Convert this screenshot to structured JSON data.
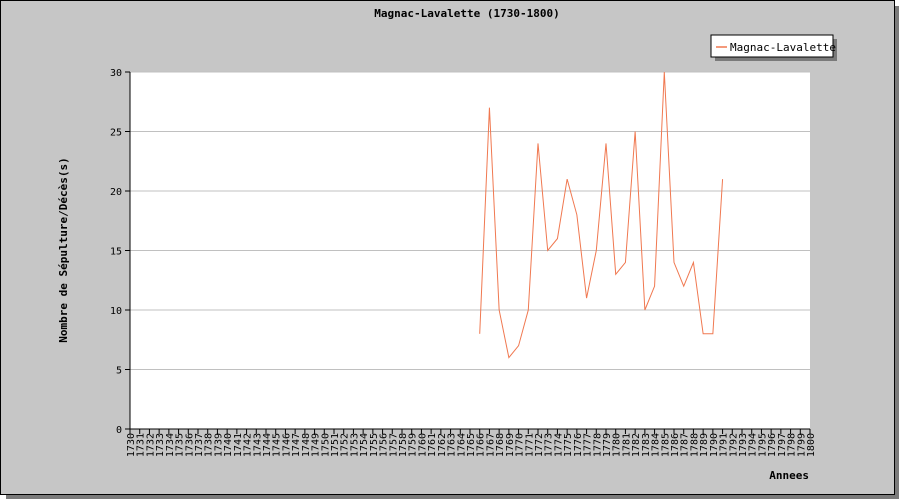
{
  "chart_data": {
    "type": "line",
    "title": "Magnac-Lavalette (1730-1800)",
    "xlabel": "Annees",
    "ylabel": "Nombre de Sépulture/Décès(s)",
    "x_categories": [
      "1730",
      "1731",
      "1732",
      "1733",
      "1734",
      "1735",
      "1736",
      "1737",
      "1738",
      "1739",
      "1740",
      "1741",
      "1742",
      "1743",
      "1744",
      "1745",
      "1746",
      "1747",
      "1748",
      "1749",
      "1750",
      "1751",
      "1752",
      "1753",
      "1754",
      "1755",
      "1756",
      "1757",
      "1758",
      "1759",
      "1760",
      "1761",
      "1762",
      "1763",
      "1764",
      "1765",
      "1766",
      "1767",
      "1768",
      "1769",
      "1770",
      "1771",
      "1772",
      "1773",
      "1774",
      "1775",
      "1776",
      "1777",
      "1778",
      "1779",
      "1780",
      "1781",
      "1782",
      "1783",
      "1784",
      "1785",
      "1786",
      "1787",
      "1788",
      "1789",
      "1790",
      "1791",
      "1792",
      "1793",
      "1794",
      "1795",
      "1796",
      "1797",
      "1798",
      "1799",
      "1800"
    ],
    "ylim": [
      0,
      30
    ],
    "yticks": [
      0,
      5,
      10,
      15,
      20,
      25,
      30
    ],
    "grid": true,
    "legend_position": "top-right",
    "series": [
      {
        "name": "Magnac-Lavalette",
        "color": "#f07850",
        "x": [
          1766,
          1767,
          1768,
          1769,
          1770,
          1771,
          1772,
          1773,
          1774,
          1775,
          1776,
          1777,
          1778,
          1779,
          1780,
          1781,
          1782,
          1783,
          1784,
          1785,
          1786,
          1787,
          1788,
          1789,
          1790,
          1791
        ],
        "y": [
          8,
          27,
          10,
          6,
          7,
          10,
          24,
          15,
          16,
          21,
          18,
          11,
          15,
          24,
          13,
          14,
          25,
          10,
          12,
          30,
          14,
          12,
          14,
          8,
          8,
          21
        ]
      }
    ]
  }
}
